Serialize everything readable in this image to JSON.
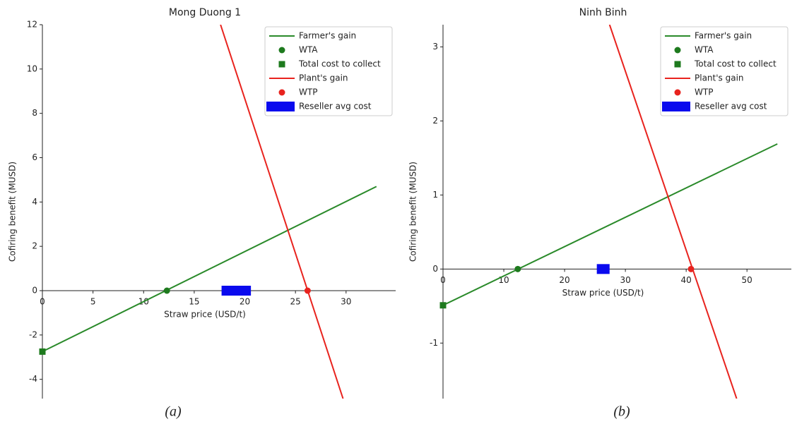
{
  "chart_data": [
    {
      "type": "line",
      "title": "Mong Duong 1",
      "xlabel": "Straw price (USD/t)",
      "ylabel": "Cofiring benefit (MUSD)",
      "caption": "(a)",
      "xlim": [
        0,
        34.9
      ],
      "ylim": [
        -4.87,
        12
      ],
      "xticks": [
        0,
        5,
        10,
        15,
        20,
        25,
        30
      ],
      "yticks": [
        -4,
        -2,
        0,
        2,
        4,
        6,
        8,
        10,
        12
      ],
      "legend": "upper right",
      "series": [
        {
          "name": "Farmer's gain",
          "color": "#2a8a2a",
          "style": "line",
          "x": [
            0,
            33
          ],
          "values": [
            -2.75,
            4.7
          ]
        },
        {
          "name": "WTA",
          "color": "#1e7a1e",
          "style": "circle",
          "x": [
            12.3
          ],
          "values": [
            0
          ]
        },
        {
          "name": "Total cost to collect",
          "color": "#1e7a1e",
          "style": "square",
          "x": [
            0
          ],
          "values": [
            -2.75
          ]
        },
        {
          "name": "Plant's gain",
          "color": "#e8231e",
          "style": "line",
          "x": [
            17.6,
            29.7
          ],
          "values": [
            12,
            -4.87
          ]
        },
        {
          "name": "WTP",
          "color": "#e8231e",
          "style": "circle",
          "x": [
            26.2
          ],
          "values": [
            0
          ]
        },
        {
          "name": "Reseller avg cost",
          "color": "#0a0aee",
          "style": "bar",
          "x": [
            17.7,
            20.6
          ],
          "values": [
            0,
            0
          ]
        }
      ]
    },
    {
      "type": "line",
      "title": "Ninh Binh",
      "xlabel": "Straw price (USD/t)",
      "ylabel": "Cofiring benefit (MUSD)",
      "caption": "(b)",
      "xlim": [
        0,
        57.3
      ],
      "ylim": [
        -1.75,
        3.3
      ],
      "xticks": [
        0,
        10,
        20,
        30,
        40,
        50
      ],
      "yticks": [
        -1,
        0,
        1,
        2,
        3
      ],
      "legend": "upper right",
      "series": [
        {
          "name": "Farmer's gain",
          "color": "#2a8a2a",
          "style": "line",
          "x": [
            0,
            55
          ],
          "values": [
            -0.49,
            1.69
          ]
        },
        {
          "name": "WTA",
          "color": "#1e7a1e",
          "style": "circle",
          "x": [
            12.3
          ],
          "values": [
            0
          ]
        },
        {
          "name": "Total cost to collect",
          "color": "#1e7a1e",
          "style": "square",
          "x": [
            0
          ],
          "values": [
            -0.49
          ]
        },
        {
          "name": "Plant's gain",
          "color": "#e8231e",
          "style": "line",
          "x": [
            27.4,
            48.3
          ],
          "values": [
            3.3,
            -1.75
          ]
        },
        {
          "name": "WTP",
          "color": "#e8231e",
          "style": "circle",
          "x": [
            40.8
          ],
          "values": [
            0
          ]
        },
        {
          "name": "Reseller avg cost",
          "color": "#0a0aee",
          "style": "bar",
          "x": [
            25.3,
            27.4
          ],
          "values": [
            0,
            0
          ]
        }
      ]
    }
  ]
}
